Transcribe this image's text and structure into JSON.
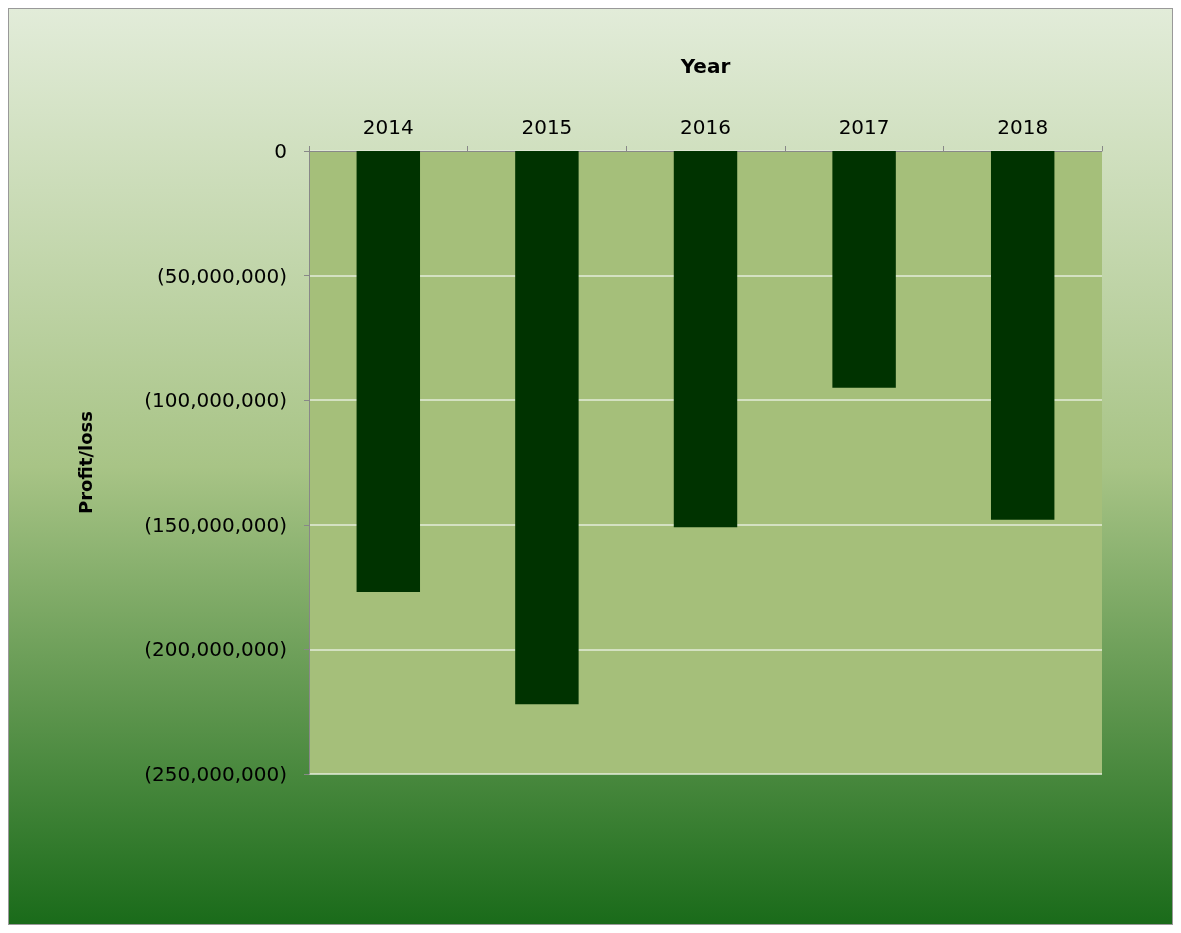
{
  "chart_data": {
    "type": "bar",
    "xlabel": "Year",
    "ylabel": "Profit/loss",
    "categories": [
      "2014",
      "2015",
      "2016",
      "2017",
      "2018"
    ],
    "values": [
      -177000000,
      -222000000,
      -151000000,
      -95000000,
      -148000000
    ],
    "color": "#003300",
    "ylim": [
      -250000000,
      0
    ],
    "yticks": [
      {
        "value": 0,
        "label": "0"
      },
      {
        "value": -50000000,
        "label": "(50,000,000)"
      },
      {
        "value": -100000000,
        "label": "(100,000,000)"
      },
      {
        "value": -150000000,
        "label": "(150,000,000)"
      },
      {
        "value": -200000000,
        "label": "(200,000,000)"
      },
      {
        "value": -250000000,
        "label": "(250,000,000)"
      }
    ],
    "grid": "y"
  }
}
